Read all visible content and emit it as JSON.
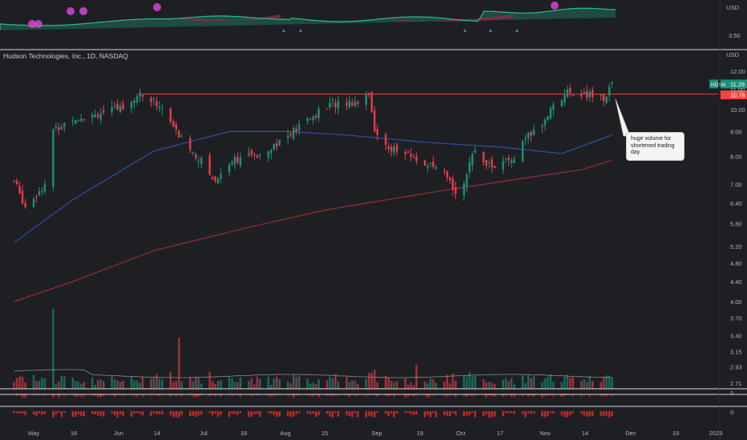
{
  "chart_title": "Hudson Technologies, Inc., 1D, NASDAQ",
  "currency_label": "USD",
  "currency_label_top": "USD",
  "top_panel_price_label": "3.50",
  "annotation": "huge volume for shortened trading day",
  "colors": {
    "background": "#1e1f23",
    "up": "#1e8f78",
    "down": "#e53d4a",
    "ma_blue": "#2f4fa8",
    "ma_red": "#9c2a33",
    "resistance": "#f0463c",
    "top_area_green": "#1f6f5c",
    "top_area_red": "#a8214a",
    "marker_magenta": "#d246d2",
    "triangle_blue": "#3a7bd5",
    "volume_ma": "#8a8d96"
  },
  "chart_data": {
    "type": "candlestick",
    "title": "Hudson Technologies, Inc., 1D, NASDAQ",
    "symbol": "HDSN",
    "last_price": 11.29,
    "resistance_level": 10.76,
    "y_scale": "log",
    "ylim": [
      3.0,
      12.3
    ],
    "y_ticks": [
      "12.00",
      "11.00",
      "10.00",
      "9.00",
      "8.00",
      "7.00",
      "6.40",
      "5.80",
      "5.20",
      "4.80",
      "4.40",
      "4.00",
      "3.70",
      "3.40",
      "3.15",
      "2.93",
      "2.71"
    ],
    "x_ticks": [
      "May",
      "16",
      "Jun",
      "14",
      "Jul",
      "18",
      "Aug",
      "15",
      "Sep",
      "19",
      "Oct",
      "17",
      "Nov",
      "14",
      "Dec",
      "19",
      "2023"
    ],
    "price_path_keypoints": [
      {
        "date": "Apr 25",
        "close": 7.1
      },
      {
        "date": "Apr 29",
        "close": 6.3
      },
      {
        "date": "May 6",
        "close": 7.0
      },
      {
        "date": "May 9",
        "close": 9.0
      },
      {
        "date": "May 16",
        "close": 9.6
      },
      {
        "date": "Jun 1",
        "close": 10.0
      },
      {
        "date": "Jun 9",
        "close": 10.75
      },
      {
        "date": "Jun 16",
        "close": 10.2
      },
      {
        "date": "Jun 23",
        "close": 8.8
      },
      {
        "date": "Jul 1",
        "close": 7.8
      },
      {
        "date": "Jul 6",
        "close": 7.1
      },
      {
        "date": "Jul 12",
        "close": 7.9
      },
      {
        "date": "Jul 20",
        "close": 8.0
      },
      {
        "date": "Aug 1",
        "close": 8.8
      },
      {
        "date": "Aug 9",
        "close": 9.6
      },
      {
        "date": "Aug 17",
        "close": 10.3
      },
      {
        "date": "Aug 26",
        "close": 10.4
      },
      {
        "date": "Aug 30",
        "close": 10.9
      },
      {
        "date": "Sep 1",
        "close": 8.9
      },
      {
        "date": "Sep 7",
        "close": 8.3
      },
      {
        "date": "Sep 16",
        "close": 7.9
      },
      {
        "date": "Sep 26",
        "close": 7.3
      },
      {
        "date": "Sep 30",
        "close": 6.8
      },
      {
        "date": "Oct 3",
        "close": 7.1
      },
      {
        "date": "Oct 7",
        "close": 8.2
      },
      {
        "date": "Oct 13",
        "close": 7.6
      },
      {
        "date": "Oct 21",
        "close": 7.9
      },
      {
        "date": "Oct 26",
        "close": 8.8
      },
      {
        "date": "Oct 31",
        "close": 9.3
      },
      {
        "date": "Nov 4",
        "close": 10.3
      },
      {
        "date": "Nov 10",
        "close": 10.9
      },
      {
        "date": "Nov 16",
        "close": 10.7
      },
      {
        "date": "Nov 22",
        "close": 10.55
      },
      {
        "date": "Nov 25",
        "close": 11.29
      }
    ],
    "ma_blue_keypoints": [
      {
        "date": "Apr 25",
        "value": 5.3
      },
      {
        "date": "May 16",
        "value": 6.5
      },
      {
        "date": "Jun 14",
        "value": 8.2
      },
      {
        "date": "Jul 11",
        "value": 9.0
      },
      {
        "date": "Aug 1",
        "value": 9.0
      },
      {
        "date": "Aug 22",
        "value": 8.85
      },
      {
        "date": "Sep 19",
        "value": 8.55
      },
      {
        "date": "Oct 17",
        "value": 8.35
      },
      {
        "date": "Nov 7",
        "value": 8.1
      },
      {
        "date": "Nov 25",
        "value": 8.85
      }
    ],
    "ma_red_keypoints": [
      {
        "date": "Apr 25",
        "value": 4.0
      },
      {
        "date": "May 16",
        "value": 4.4
      },
      {
        "date": "Jun 14",
        "value": 5.1
      },
      {
        "date": "Jul 18",
        "value": 5.7
      },
      {
        "date": "Aug 15",
        "value": 6.2
      },
      {
        "date": "Sep 19",
        "value": 6.7
      },
      {
        "date": "Oct 17",
        "value": 7.1
      },
      {
        "date": "Nov 14",
        "value": 7.5
      },
      {
        "date": "Nov 25",
        "value": 7.85
      }
    ],
    "volume_note": "Volume bars with spikes on May 9, Jun 23, Aug 30, Sep 16 and Nov 25"
  }
}
